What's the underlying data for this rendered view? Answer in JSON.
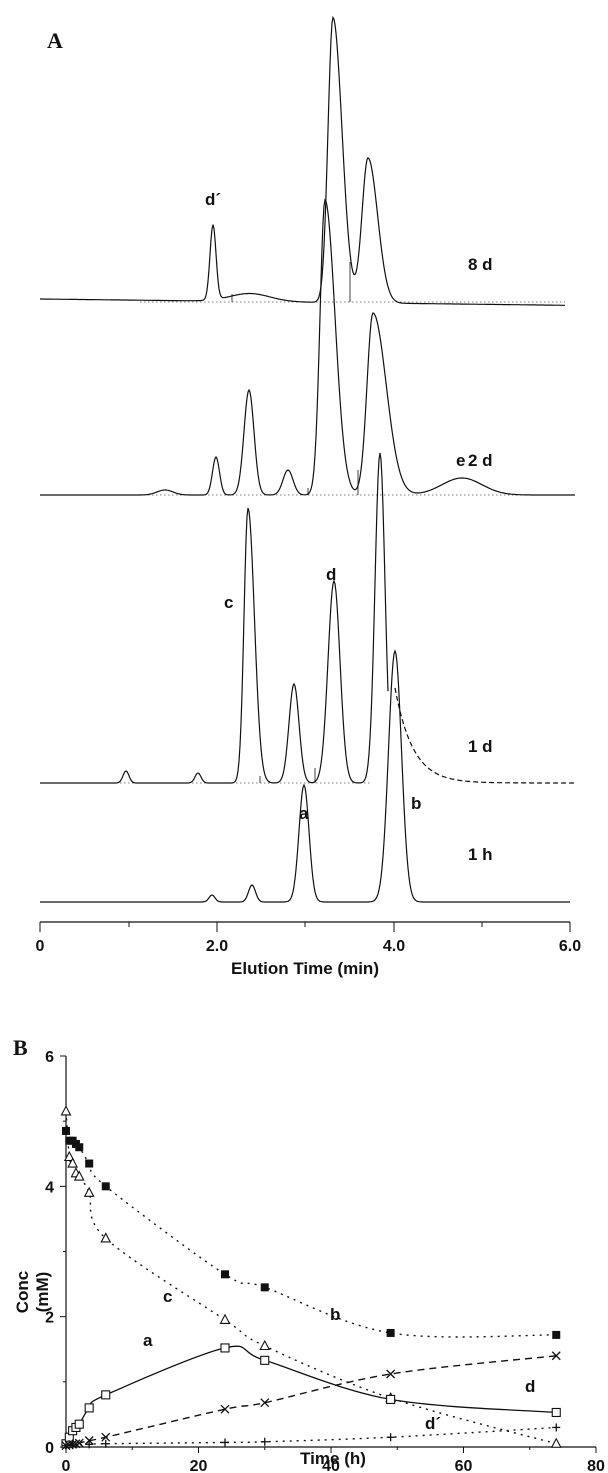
{
  "panelA": {
    "label": "A",
    "xlabel": "Elution Time (min)",
    "xticks": [
      "0",
      "2.0",
      "4.0",
      "6.0"
    ],
    "traces": [
      {
        "time_label": "8 d"
      },
      {
        "time_label": "2 d"
      },
      {
        "time_label": "1 d"
      },
      {
        "time_label": "1 h"
      }
    ],
    "peak_labels": [
      "d´",
      "e",
      "c",
      "d",
      "b",
      "a"
    ]
  },
  "chart_data": {
    "type": "scatter",
    "xlabel": "Time (h)",
    "ylabel": "Conc\n(mM)",
    "xlim": [
      0,
      80
    ],
    "ylim": [
      0,
      6
    ],
    "xticks": [
      0,
      20,
      40,
      60,
      80
    ],
    "yticks": [
      0,
      2,
      4,
      6
    ],
    "series": [
      {
        "name": "a",
        "marker": "open-triangle",
        "line": "dotted",
        "x": [
          0,
          0.5,
          1,
          1.5,
          2,
          3.5,
          6,
          24,
          30,
          49,
          74
        ],
        "y": [
          5.15,
          4.45,
          4.35,
          4.2,
          4.15,
          3.9,
          3.2,
          1.95,
          1.55,
          0.75,
          0.05
        ]
      },
      {
        "name": "b",
        "marker": "filled-square",
        "line": "dotted",
        "x": [
          0,
          0.5,
          1,
          1.5,
          2,
          3.5,
          6,
          24,
          30,
          49,
          74
        ],
        "y": [
          4.85,
          4.7,
          4.7,
          4.65,
          4.6,
          4.35,
          4.0,
          2.65,
          2.45,
          1.75,
          1.72
        ]
      },
      {
        "name": "c",
        "marker": "open-square",
        "line": "solid",
        "x": [
          0,
          0.5,
          1,
          1.5,
          2,
          3.5,
          6,
          24,
          30,
          49,
          74
        ],
        "y": [
          0.05,
          0.15,
          0.25,
          0.3,
          0.35,
          0.6,
          0.8,
          1.52,
          1.33,
          0.73,
          0.53
        ]
      },
      {
        "name": "d",
        "marker": "x",
        "line": "dashed",
        "x": [
          0,
          0.5,
          1,
          1.5,
          2,
          3.5,
          6,
          24,
          30,
          49,
          74
        ],
        "y": [
          0.02,
          0.03,
          0.04,
          0.05,
          0.06,
          0.1,
          0.15,
          0.58,
          0.68,
          1.12,
          1.4
        ]
      },
      {
        "name": "d´",
        "marker": "plus",
        "line": "dotted",
        "x": [
          0,
          1,
          3.5,
          6,
          24,
          30,
          49,
          74
        ],
        "y": [
          0.02,
          0.03,
          0.04,
          0.05,
          0.07,
          0.08,
          0.15,
          0.3
        ]
      }
    ],
    "curve_labels": [
      "a",
      "b",
      "c",
      "d",
      "d´"
    ]
  },
  "panelB": {
    "label": "B"
  }
}
